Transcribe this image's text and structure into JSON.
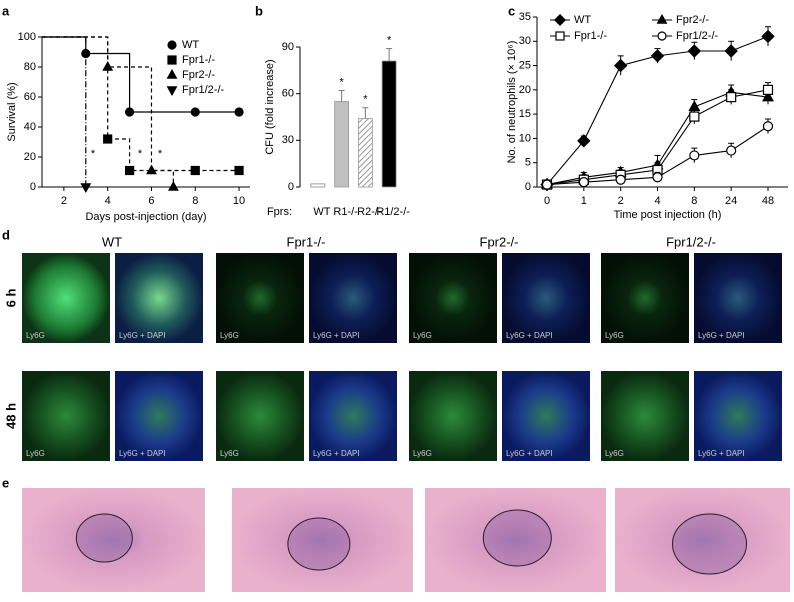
{
  "panel_labels": [
    "a",
    "b",
    "c",
    "d",
    "e"
  ],
  "chart_data": [
    {
      "type": "step",
      "ylabel": "Survival (%)",
      "xlabel": "Days post-injection (day)",
      "xlim": [
        1,
        10.5
      ],
      "xticks": [
        2,
        4,
        6,
        8,
        10
      ],
      "ylim": [
        0,
        100
      ],
      "yticks": [
        0,
        20,
        40,
        60,
        80,
        100
      ],
      "annotations": [
        "*",
        "*",
        "*"
      ],
      "series": [
        {
          "name": "WT",
          "marker": "circle",
          "dash": "none",
          "x": [
            1,
            3,
            5,
            8,
            10
          ],
          "values": [
            100,
            89,
            50,
            50,
            50
          ]
        },
        {
          "name": "Fpr1-/-",
          "marker": "square",
          "dash": "4 3",
          "x": [
            1,
            4,
            5,
            8,
            10
          ],
          "values": [
            100,
            32,
            11,
            11,
            11
          ]
        },
        {
          "name": "Fpr2-/-",
          "marker": "triangle",
          "dash": "4 3",
          "x": [
            1,
            4,
            6,
            7
          ],
          "values": [
            100,
            80,
            11,
            0
          ]
        },
        {
          "name": "Fpr1/2-/-",
          "marker": "triangle-down",
          "dash": "6 2 1 2",
          "x": [
            1,
            3
          ],
          "values": [
            100,
            0
          ]
        }
      ]
    },
    {
      "type": "bar",
      "ylabel": "CFU (fold increase)",
      "prefix": "Fprs:",
      "categories": [
        "WT",
        "R1-/-",
        "R2-/-",
        "R1/2-/-"
      ],
      "values": [
        2,
        55,
        44,
        81
      ],
      "errors": [
        1,
        7,
        7,
        8
      ],
      "colors": [
        "#ffffff",
        "#c0c0c0",
        "#d8d8d8",
        "#000000"
      ],
      "hatch": [
        false,
        false,
        true,
        false
      ],
      "annotations": [
        "*",
        "*",
        "*"
      ],
      "ylim": [
        0,
        90
      ],
      "yticks": [
        0,
        30,
        60,
        90
      ]
    },
    {
      "type": "line",
      "ylabel": "No. of neutrophils (× 10⁶)",
      "xlabel": "Time post injection (h)",
      "categories": [
        "0",
        "1",
        "2",
        "4",
        "8",
        "24",
        "48"
      ],
      "ylim": [
        0,
        35
      ],
      "yticks": [
        0,
        5,
        10,
        15,
        20,
        25,
        30,
        35
      ],
      "series": [
        {
          "name": "WT",
          "marker": "diamond",
          "filled": true,
          "values": [
            0.5,
            9.5,
            25,
            27,
            28,
            28,
            31
          ],
          "errors": [
            0.3,
            1,
            2,
            1.5,
            1.8,
            2,
            2
          ]
        },
        {
          "name": "Fpr2-/-",
          "marker": "triangle",
          "filled": true,
          "values": [
            0.5,
            2,
            3,
            4.5,
            16.5,
            19.5,
            18.5
          ],
          "errors": [
            0.3,
            1,
            1,
            2,
            1.5,
            1.5,
            1.5
          ]
        },
        {
          "name": "Fpr1-/-",
          "marker": "square",
          "filled": false,
          "values": [
            0.5,
            1.5,
            2.5,
            3.5,
            14.5,
            18.5,
            20
          ],
          "errors": [
            0.3,
            1,
            1,
            1.5,
            1.5,
            1.5,
            1.5
          ]
        },
        {
          "name": "Fpr1/2-/-",
          "marker": "circle",
          "filled": false,
          "values": [
            0.5,
            1,
            1.5,
            2,
            6.5,
            7.5,
            12.5
          ],
          "errors": [
            0.3,
            0.5,
            0.8,
            1,
            1.5,
            1.5,
            1.5
          ]
        }
      ]
    }
  ],
  "micrographs": {
    "columns": [
      "WT",
      "Fpr1-/-",
      "Fpr2-/-",
      "Fpr1/2-/-"
    ],
    "rows": [
      "6 h",
      "48 h"
    ],
    "image_labels": [
      "Ly6G",
      "Ly6G + DAPI"
    ]
  }
}
